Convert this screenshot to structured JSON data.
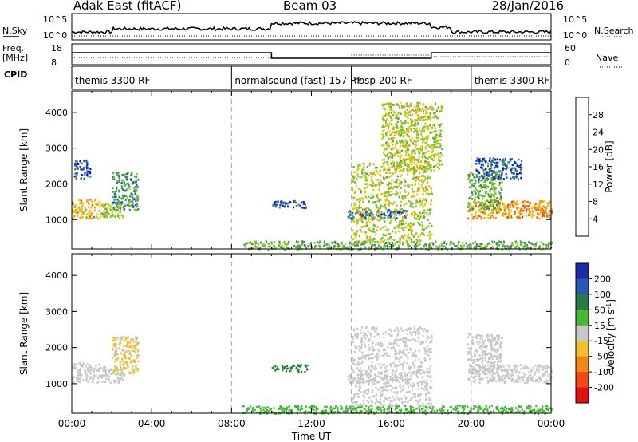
{
  "header": {
    "station": "Adak East (fitACF)",
    "beam": "Beam 03",
    "date": "28/Jan/2016"
  },
  "panels": {
    "nsky": {
      "label": "N.Sky",
      "right_label": "N.Search",
      "top_tick": "10^5",
      "bottom_tick": "10^0",
      "right_top_tick": "10^5",
      "right_bottom_tick": "10^0"
    },
    "freq": {
      "label": "Freq.",
      "unit": "[MHz]",
      "left_ticks": [
        "18",
        "8"
      ],
      "right_label": "Nave",
      "right_ticks": [
        "60",
        "0"
      ]
    },
    "cpid": {
      "label": "CPID",
      "segments": [
        {
          "name": "themis 3300 RF",
          "start_hour": 0
        },
        {
          "name": "normalsound (fast) 157 RF",
          "start_hour": 8
        },
        {
          "name": "rbsp 200 RF",
          "start_hour": 14
        },
        {
          "name": "themis 3300 RF",
          "start_hour": 20
        }
      ]
    }
  },
  "power_colorbar": {
    "label": "Power [dB]",
    "ticks": [
      "4",
      "8",
      "12",
      "16",
      "20",
      "24",
      "28"
    ],
    "colors": [
      "#1010d8",
      "#2050c8",
      "#3c8a5a",
      "#58b040",
      "#90c830",
      "#e8c810",
      "#f0a020",
      "#e86010",
      "#e02010"
    ]
  },
  "velocity_colorbar": {
    "label": "Velocity [m s",
    "label_sup": "-1",
    "label_end": "]",
    "ticks": [
      "200",
      "100",
      "50",
      "15",
      "-15",
      "-50",
      "-100",
      "-200"
    ],
    "colors": [
      "#1a2aa8",
      "#2a58b0",
      "#2a7a48",
      "#46b838",
      "#c8c8c8",
      "#f0c030",
      "#f08818",
      "#f04818",
      "#e01010"
    ]
  },
  "xaxis": {
    "label": "Time UT",
    "ticks": [
      "00:00",
      "04:00",
      "08:00",
      "12:00",
      "16:00",
      "20:00",
      "00:00"
    ]
  },
  "chart_data": [
    {
      "type": "heatmap",
      "title": "",
      "xlabel": "Time UT",
      "ylabel": "Slant Range [km]",
      "xlim": [
        0,
        24
      ],
      "ylim": [
        180,
        4600
      ],
      "yticks": [
        1000,
        2000,
        3000,
        4000
      ],
      "colorbar": "Power [dB]",
      "color_range": [
        0,
        30
      ],
      "regions": [
        {
          "t0": 0.0,
          "t1": 1.4,
          "r0": 1050,
          "r1": 1600,
          "level": 20
        },
        {
          "t0": 1.4,
          "t1": 2.6,
          "r0": 1050,
          "r1": 1500,
          "level": 15
        },
        {
          "t0": 2.0,
          "t1": 3.3,
          "r0": 1300,
          "r1": 2350,
          "level": 10
        },
        {
          "t0": 0.1,
          "t1": 0.9,
          "r0": 2150,
          "r1": 2700,
          "level": 6
        },
        {
          "t0": 10.0,
          "t1": 11.8,
          "r0": 1350,
          "r1": 1550,
          "level": 5
        },
        {
          "t0": 13.8,
          "t1": 16.8,
          "r0": 1050,
          "r1": 1300,
          "level": 6
        },
        {
          "t0": 19.8,
          "t1": 24.0,
          "r0": 1050,
          "r1": 1550,
          "level": 22
        },
        {
          "t0": 19.8,
          "t1": 21.5,
          "r0": 1300,
          "r1": 2400,
          "level": 12
        },
        {
          "t0": 20.2,
          "t1": 22.5,
          "r0": 2150,
          "r1": 2750,
          "level": 6
        },
        {
          "t0": 8.5,
          "t1": 24.0,
          "r0": 190,
          "r1": 420,
          "level": 12
        },
        {
          "t0": 14.0,
          "t1": 18.0,
          "r0": 400,
          "r1": 2600,
          "level": 16
        },
        {
          "t0": 15.5,
          "t1": 18.5,
          "r0": 2400,
          "r1": 4300,
          "level": 16
        }
      ]
    },
    {
      "type": "heatmap",
      "title": "",
      "xlabel": "Time UT",
      "ylabel": "Slant Range [km]",
      "xlim": [
        0,
        24
      ],
      "ylim": [
        180,
        4600
      ],
      "yticks": [
        1000,
        2000,
        3000,
        4000
      ],
      "colorbar": "Velocity [m s-1]",
      "color_range": [
        -200,
        200
      ],
      "regions": [
        {
          "t0": 0.0,
          "t1": 1.4,
          "r0": 1050,
          "r1": 1600,
          "level": 0
        },
        {
          "t0": 1.4,
          "t1": 2.6,
          "r0": 1050,
          "r1": 1500,
          "level": 0
        },
        {
          "t0": 2.0,
          "t1": 3.3,
          "r0": 1300,
          "r1": 2350,
          "level": -20
        },
        {
          "t0": 10.0,
          "t1": 11.8,
          "r0": 1350,
          "r1": 1550,
          "level": 60
        },
        {
          "t0": 13.8,
          "t1": 16.8,
          "r0": 1050,
          "r1": 1300,
          "level": 0
        },
        {
          "t0": 19.8,
          "t1": 24.0,
          "r0": 1050,
          "r1": 1550,
          "level": 0
        },
        {
          "t0": 19.8,
          "t1": 21.5,
          "r0": 1300,
          "r1": 2400,
          "level": 0
        },
        {
          "t0": 8.5,
          "t1": 24.0,
          "r0": 190,
          "r1": 420,
          "level": 30
        },
        {
          "t0": 14.0,
          "t1": 18.0,
          "r0": 400,
          "r1": 2600,
          "level": 0
        }
      ]
    }
  ]
}
